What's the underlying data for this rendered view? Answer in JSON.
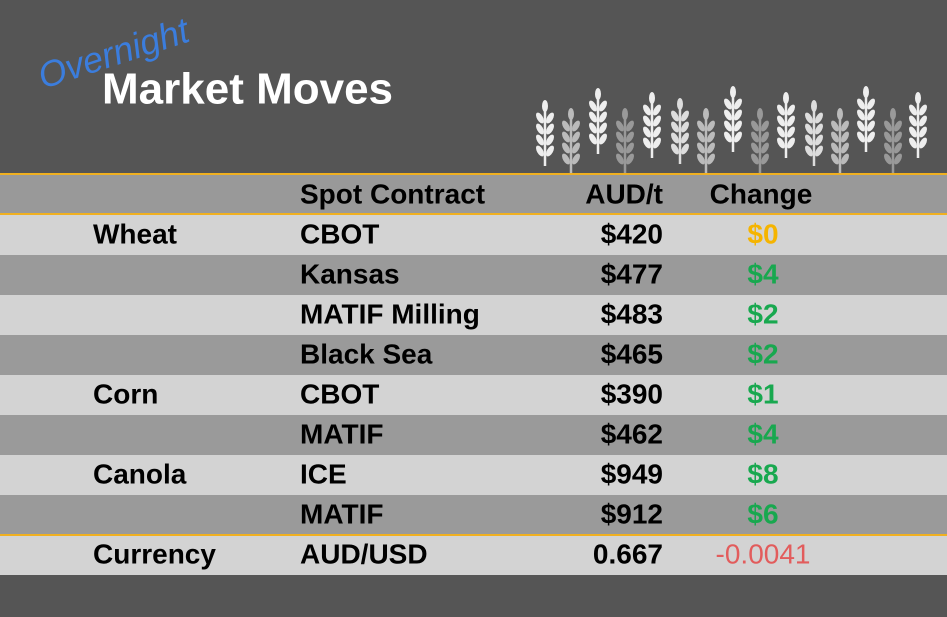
{
  "header": {
    "kicker": "Overnight",
    "title": "Market Moves"
  },
  "table": {
    "columns": [
      "Spot Contract",
      "AUD/t",
      "Change"
    ],
    "rows": [
      {
        "group": "Wheat",
        "contract": "CBOT",
        "price": "$420",
        "change": "$0",
        "change_color": "#f5b400"
      },
      {
        "contract": "Kansas",
        "price": "$477",
        "change": "$4",
        "change_color": "#18a84f"
      },
      {
        "contract": "MATIF Milling",
        "price": "$483",
        "change": "$2",
        "change_color": "#18a84f"
      },
      {
        "contract": "Black Sea",
        "price": "$465",
        "change": "$2",
        "change_color": "#18a84f"
      },
      {
        "group": "Corn",
        "contract": "CBOT",
        "price": "$390",
        "change": "$1",
        "change_color": "#18a84f"
      },
      {
        "contract": "MATIF",
        "price": "$462",
        "change": "$4",
        "change_color": "#18a84f"
      },
      {
        "group": "Canola",
        "contract": "ICE",
        "price": "$949",
        "change": "$8",
        "change_color": "#18a84f"
      },
      {
        "contract": "MATIF",
        "price": "$912",
        "change": "$6",
        "change_color": "#18a84f"
      },
      {
        "group": "Currency",
        "contract": "AUD/USD",
        "price": "0.667",
        "change": "-0.0041",
        "change_color": "#e25c5c",
        "separator": true,
        "plain_change": true
      }
    ]
  }
}
